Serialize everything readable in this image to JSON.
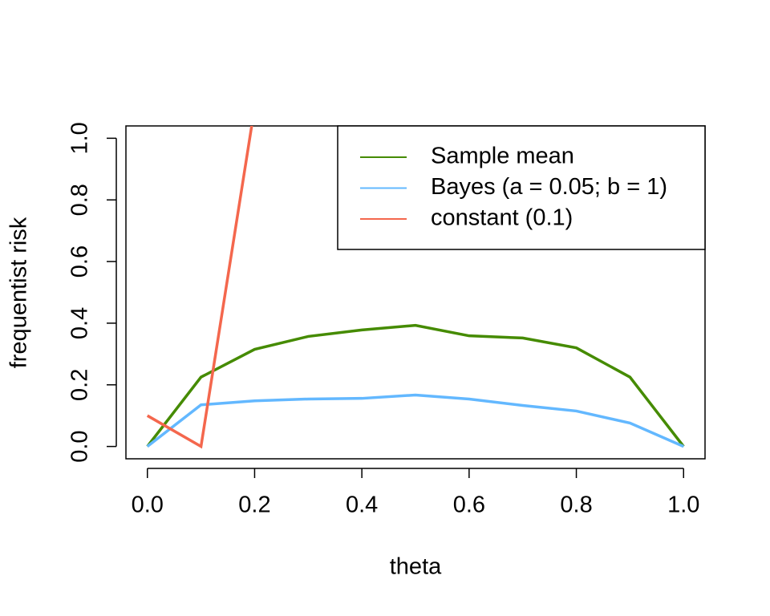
{
  "chart_data": {
    "type": "line",
    "x": [
      0,
      0.1,
      0.2,
      0.3,
      0.4,
      0.5,
      0.6,
      0.7,
      0.8,
      0.9,
      1.0
    ],
    "series": [
      {
        "name": "Sample mean",
        "color": "#458B00",
        "values": [
          0,
          0.225,
          0.315,
          0.357,
          0.378,
          0.393,
          0.359,
          0.352,
          0.32,
          0.225,
          0
        ]
      },
      {
        "name": "Bayes (a = 0.05; b = 1)",
        "color": "#63B8FF",
        "values": [
          0,
          0.135,
          0.148,
          0.154,
          0.156,
          0.167,
          0.154,
          0.133,
          0.115,
          0.076,
          0
        ]
      },
      {
        "name": "constant (0.1)",
        "color": "#F4674D",
        "values": [
          0.1,
          0,
          1.1,
          null,
          null,
          null,
          null,
          null,
          null,
          null,
          null
        ]
      }
    ],
    "x_label": "theta",
    "y_label": "frequentist risk",
    "xlim": [
      -0.04,
      1.04
    ],
    "ylim": [
      -0.04,
      1.04
    ],
    "xticks": [
      {
        "value": 0,
        "label": "0.0"
      },
      0.2,
      0.4,
      0.6,
      0.8,
      {
        "value": 1,
        "label": "1.0"
      }
    ],
    "yticks": [
      {
        "value": 0,
        "label": "0.0"
      },
      0.2,
      0.4,
      0.6,
      0.8,
      {
        "value": 1,
        "label": "1.0"
      }
    ],
    "legend": "top-right",
    "grid": false
  }
}
